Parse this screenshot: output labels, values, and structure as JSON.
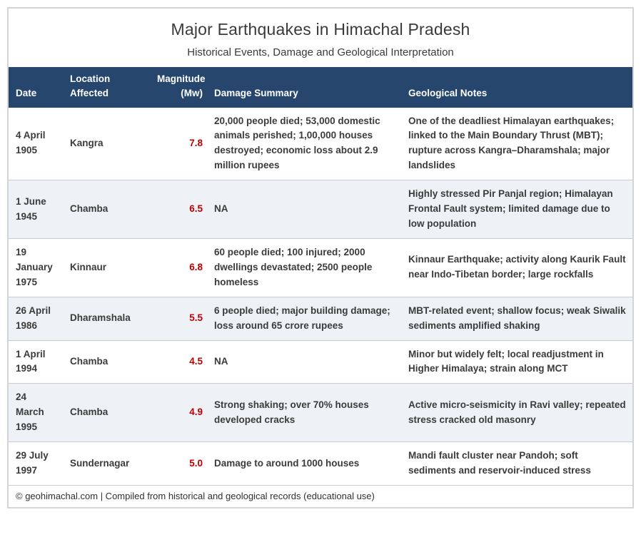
{
  "title": "Major Earthquakes in Himachal Pradesh",
  "subtitle": "Historical Events, Damage and Geological Interpretation",
  "colors": {
    "header_bg": "#26466e",
    "magnitude_text": "#c00000",
    "row_stripe": "#eef1f6",
    "card_border": "#d4d4d4",
    "body_text": "#3b3b3b"
  },
  "table": {
    "header": {
      "date": "Date",
      "location": "Location\nAffected",
      "magnitude": "Magnitude\n(Mw)",
      "damage": "Damage Summary",
      "notes": "Geological Notes"
    },
    "rows": [
      {
        "date": "4 April 1905",
        "location": "Kangra",
        "magnitude": "7.8",
        "damage": "20,000 people died; 53,000 domestic animals perished; 1,00,000 houses destroyed; economic loss about 2.9 million rupees",
        "notes": "One of the deadliest Himalayan earthquakes; linked to the Main Boundary Thrust (MBT); rupture across Kangra–Dharamshala; major landslides"
      },
      {
        "date": "1 June 1945",
        "location": "Chamba",
        "magnitude": "6.5",
        "damage": "NA",
        "notes": "Highly stressed Pir Panjal region; Himalayan Frontal Fault system; limited damage due to low population"
      },
      {
        "date": "19 January 1975",
        "location": "Kinnaur",
        "magnitude": "6.8",
        "damage": "60 people died; 100 injured; 2000 dwellings devastated; 2500 people homeless",
        "notes": "Kinnaur Earthquake; activity along Kaurik Fault near Indo-Tibetan border; large rockfalls"
      },
      {
        "date": "26 April 1986",
        "location": "Dharamshala",
        "magnitude": "5.5",
        "damage": "6 people died; major building damage; loss around 65 crore rupees",
        "notes": "MBT-related event; shallow focus; weak Siwalik sediments amplified shaking"
      },
      {
        "date": "1 April 1994",
        "location": "Chamba",
        "magnitude": "4.5",
        "damage": "NA",
        "notes": "Minor but widely felt; local readjustment in Higher Himalaya; strain along MCT"
      },
      {
        "date": "24 March 1995",
        "location": "Chamba",
        "magnitude": "4.9",
        "damage": "Strong shaking; over 70% houses developed cracks",
        "notes": "Active micro-seismicity in Ravi valley; repeated stress cracked old masonry"
      },
      {
        "date": "29 July 1997",
        "location": "Sundernagar",
        "magnitude": "5.0",
        "damage": "Damage to around 1000 houses",
        "notes": "Mandi fault cluster near Pandoh; soft sediments and reservoir-induced stress"
      }
    ]
  },
  "footer": "© geohimachal.com | Compiled from historical and geological records (educational use)",
  "chart_data": {
    "type": "table",
    "title": "Major Earthquakes in Himachal Pradesh",
    "subtitle": "Historical Events, Damage and Geological Interpretation",
    "columns": [
      "Date",
      "Location Affected",
      "Magnitude (Mw)",
      "Damage Summary",
      "Geological Notes"
    ],
    "rows": [
      [
        "4 April 1905",
        "Kangra",
        7.8,
        "20,000 people died; 53,000 domestic animals perished; 1,00,000 houses destroyed; economic loss about 2.9 million rupees",
        "One of the deadliest Himalayan earthquakes; linked to the Main Boundary Thrust (MBT); rupture across Kangra–Dharamshala; major landslides"
      ],
      [
        "1 June 1945",
        "Chamba",
        6.5,
        "NA",
        "Highly stressed Pir Panjal region; Himalayan Frontal Fault system; limited damage due to low population"
      ],
      [
        "19 January 1975",
        "Kinnaur",
        6.8,
        "60 people died; 100 injured; 2000 dwellings devastated; 2500 people homeless",
        "Kinnaur Earthquake; activity along Kaurik Fault near Indo-Tibetan border; large rockfalls"
      ],
      [
        "26 April 1986",
        "Dharamshala",
        5.5,
        "6 people died; major building damage; loss around 65 crore rupees",
        "MBT-related event; shallow focus; weak Siwalik sediments amplified shaking"
      ],
      [
        "1 April 1994",
        "Chamba",
        4.5,
        "NA",
        "Minor but widely felt; local readjustment in Higher Himalaya; strain along MCT"
      ],
      [
        "24 March 1995",
        "Chamba",
        4.9,
        "Strong shaking; over 70% houses developed cracks",
        "Active micro-seismicity in Ravi valley; repeated stress cracked old masonry"
      ],
      [
        "29 July 1997",
        "Sundernagar",
        5.0,
        "Damage to around 1000 houses",
        "Mandi fault cluster near Pandoh; soft sediments and reservoir-induced stress"
      ]
    ],
    "layout": {
      "striped_rows": true,
      "magnitude_color": "#c00000",
      "header_bg": "#26466e"
    }
  }
}
